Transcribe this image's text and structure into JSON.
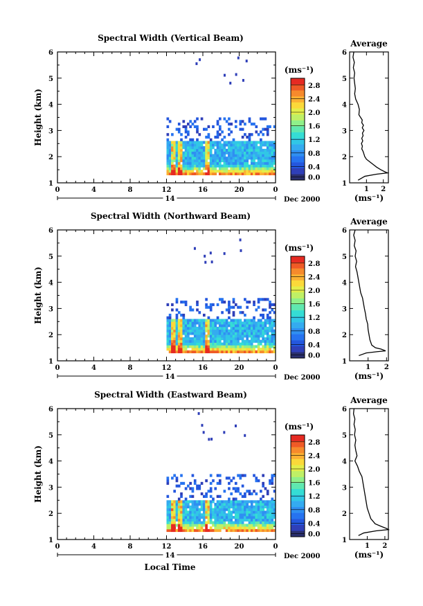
{
  "colors": {
    "colormap": [
      "#2a2f6e",
      "#2f3fb8",
      "#2457de",
      "#2673f0",
      "#2f8ff2",
      "#34abf0",
      "#31c7e6",
      "#35ddd4",
      "#5fe8b0",
      "#8ff08a",
      "#bff066",
      "#e4ee4a",
      "#fbd93a",
      "#fbb133",
      "#f68a2c",
      "#ef5a26",
      "#e62a22"
    ],
    "axis": "#000000"
  },
  "chart_data": [
    {
      "type": "heatmap",
      "title": "Spectral Width (Vertical Beam)",
      "ylabel": "Height (km)",
      "xlabel": "",
      "x_ticks": [
        "0",
        "4",
        "8",
        "12",
        "16",
        "20",
        "0"
      ],
      "y_ticks": [
        "1",
        "2",
        "3",
        "4",
        "5",
        "6"
      ],
      "xlim": [
        0,
        24
      ],
      "ylim": [
        1,
        6
      ],
      "date_label": "14",
      "date_suffix": "Dec 2000",
      "colorbar": {
        "unit": "(ms⁻¹)",
        "ticks": [
          "2.8",
          "2.4",
          "2.0",
          "1.6",
          "1.2",
          "0.8",
          "0.4",
          "0.0"
        ],
        "range": [
          0,
          3.0
        ]
      },
      "profile": {
        "title": "Average",
        "xlabel": "(ms⁻¹)",
        "x_ticks": [
          "1",
          "2"
        ],
        "xlim": [
          0,
          2.3
        ],
        "points": [
          [
            0.25,
            6.0
          ],
          [
            0.2,
            5.8
          ],
          [
            0.28,
            5.6
          ],
          [
            0.22,
            5.4
          ],
          [
            0.3,
            5.2
          ],
          [
            0.26,
            5.0
          ],
          [
            0.3,
            4.8
          ],
          [
            0.34,
            4.6
          ],
          [
            0.3,
            4.4
          ],
          [
            0.36,
            4.2
          ],
          [
            0.5,
            4.0
          ],
          [
            0.58,
            3.8
          ],
          [
            0.55,
            3.6
          ],
          [
            0.65,
            3.5
          ],
          [
            0.75,
            3.4
          ],
          [
            0.72,
            3.3
          ],
          [
            0.82,
            3.2
          ],
          [
            0.75,
            3.1
          ],
          [
            0.85,
            3.0
          ],
          [
            0.76,
            2.9
          ],
          [
            0.8,
            2.8
          ],
          [
            0.72,
            2.7
          ],
          [
            0.78,
            2.6
          ],
          [
            0.7,
            2.5
          ],
          [
            0.76,
            2.4
          ],
          [
            0.72,
            2.3
          ],
          [
            0.8,
            2.2
          ],
          [
            0.85,
            2.1
          ],
          [
            0.9,
            2.0
          ],
          [
            1.0,
            1.9
          ],
          [
            1.2,
            1.8
          ],
          [
            1.4,
            1.7
          ],
          [
            1.6,
            1.6
          ],
          [
            1.85,
            1.5
          ],
          [
            2.1,
            1.42
          ],
          [
            2.25,
            1.38
          ],
          [
            1.6,
            1.33
          ],
          [
            0.9,
            1.25
          ],
          [
            0.5,
            1.1
          ]
        ]
      },
      "onset_hour": 12,
      "top_height": 2.6,
      "patchy_top": 3.5
    },
    {
      "type": "heatmap",
      "title": "Spectral Width (Northward Beam)",
      "ylabel": "Height (km)",
      "xlabel": "",
      "x_ticks": [
        "0",
        "4",
        "8",
        "12",
        "16",
        "20",
        "0"
      ],
      "y_ticks": [
        "1",
        "2",
        "3",
        "4",
        "5",
        "6"
      ],
      "xlim": [
        0,
        24
      ],
      "ylim": [
        1,
        6
      ],
      "date_label": "14",
      "date_suffix": "Dec 2000",
      "colorbar": {
        "unit": "(ms⁻¹)",
        "ticks": [
          "2.8",
          "2.4",
          "2.0",
          "1.6",
          "1.2",
          "0.8",
          "0.4",
          "0.0"
        ],
        "range": [
          0,
          3.0
        ]
      },
      "profile": {
        "title": "Average",
        "xlabel": "(ms⁻¹)",
        "x_ticks": [
          "1",
          "2"
        ],
        "xlim": [
          0,
          2.1
        ],
        "points": [
          [
            0.3,
            6.0
          ],
          [
            0.22,
            5.8
          ],
          [
            0.3,
            5.6
          ],
          [
            0.25,
            5.4
          ],
          [
            0.35,
            5.2
          ],
          [
            0.3,
            5.0
          ],
          [
            0.38,
            4.8
          ],
          [
            0.32,
            4.6
          ],
          [
            0.4,
            4.4
          ],
          [
            0.45,
            4.2
          ],
          [
            0.5,
            4.0
          ],
          [
            0.55,
            3.8
          ],
          [
            0.6,
            3.6
          ],
          [
            0.7,
            3.4
          ],
          [
            0.75,
            3.2
          ],
          [
            0.8,
            3.0
          ],
          [
            0.86,
            2.8
          ],
          [
            0.9,
            2.6
          ],
          [
            0.98,
            2.4
          ],
          [
            1.0,
            2.2
          ],
          [
            1.05,
            2.0
          ],
          [
            1.1,
            1.8
          ],
          [
            1.2,
            1.6
          ],
          [
            1.4,
            1.5
          ],
          [
            1.7,
            1.45
          ],
          [
            1.95,
            1.38
          ],
          [
            1.5,
            1.35
          ],
          [
            0.9,
            1.3
          ],
          [
            0.5,
            1.2
          ]
        ]
      },
      "onset_hour": 12,
      "top_height": 2.6,
      "patchy_top": 3.4
    },
    {
      "type": "heatmap",
      "title": "Spectral Width (Eastward Beam)",
      "ylabel": "Height (km)",
      "xlabel": "Local Time",
      "x_ticks": [
        "0",
        "4",
        "8",
        "12",
        "16",
        "20",
        "0"
      ],
      "y_ticks": [
        "1",
        "2",
        "3",
        "4",
        "5",
        "6"
      ],
      "xlim": [
        0,
        24
      ],
      "ylim": [
        1,
        6
      ],
      "date_label": "14",
      "date_suffix": "Dec 2000",
      "colorbar": {
        "unit": "(ms⁻¹)",
        "ticks": [
          "2.8",
          "2.4",
          "2.0",
          "1.6",
          "1.2",
          "0.8",
          "0.4",
          "0.0"
        ],
        "range": [
          0,
          3.0
        ]
      },
      "profile": {
        "title": "Average",
        "xlabel": "(ms⁻¹)",
        "x_ticks": [
          "1",
          "2"
        ],
        "xlim": [
          0,
          2.2
        ],
        "points": [
          [
            0.25,
            6.0
          ],
          [
            0.22,
            5.8
          ],
          [
            0.3,
            5.6
          ],
          [
            0.25,
            5.4
          ],
          [
            0.32,
            5.2
          ],
          [
            0.28,
            5.0
          ],
          [
            0.35,
            4.8
          ],
          [
            0.3,
            4.6
          ],
          [
            0.35,
            4.4
          ],
          [
            0.42,
            4.2
          ],
          [
            0.3,
            4.0
          ],
          [
            0.45,
            3.8
          ],
          [
            0.55,
            3.6
          ],
          [
            0.7,
            3.4
          ],
          [
            0.75,
            3.2
          ],
          [
            0.8,
            3.0
          ],
          [
            0.85,
            2.8
          ],
          [
            0.9,
            2.6
          ],
          [
            0.95,
            2.4
          ],
          [
            1.0,
            2.2
          ],
          [
            1.1,
            2.0
          ],
          [
            1.2,
            1.8
          ],
          [
            1.45,
            1.6
          ],
          [
            1.8,
            1.5
          ],
          [
            2.1,
            1.42
          ],
          [
            2.2,
            1.38
          ],
          [
            1.5,
            1.33
          ],
          [
            0.8,
            1.25
          ],
          [
            0.5,
            1.15
          ]
        ]
      },
      "onset_hour": 12,
      "top_height": 2.5,
      "patchy_top": 3.5
    }
  ]
}
